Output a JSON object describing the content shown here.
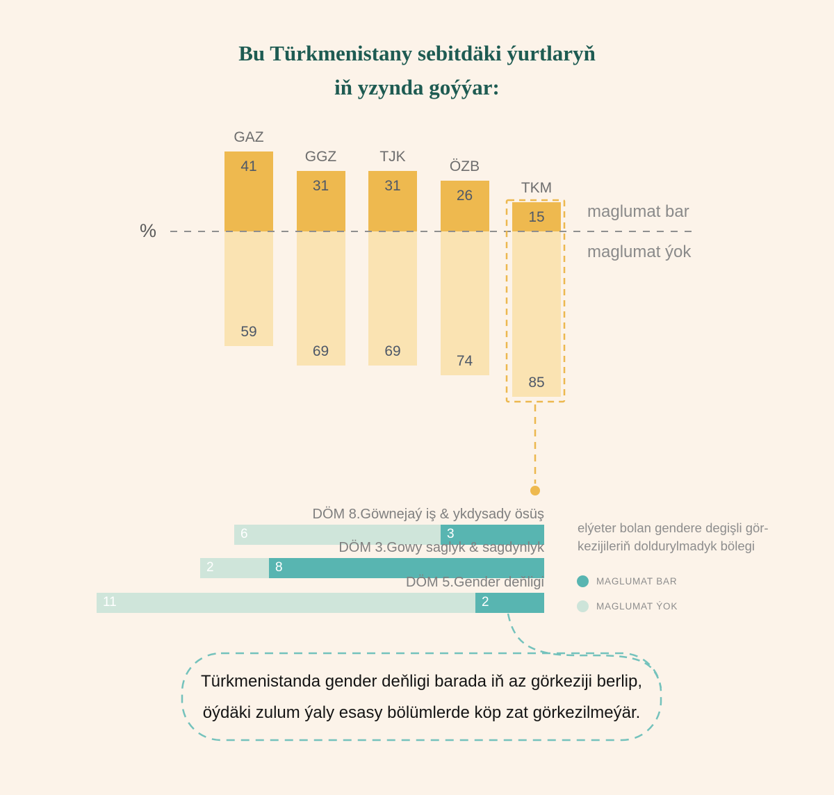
{
  "title": {
    "line1": "Bu Türkmenistany sebitdäki ýurtlaryň",
    "line2": "iň yzynda goýýar:"
  },
  "top_chart": {
    "axis_label": "%",
    "label_above_axis": "maglumat bar",
    "label_below_axis": "maglumat ýok",
    "highlight_category": "TKM"
  },
  "chart_data": [
    {
      "type": "bar",
      "orientation": "vertical-diverging",
      "categories": [
        "GAZ",
        "GGZ",
        "TJK",
        "ÖZB",
        "TKM"
      ],
      "series": [
        {
          "name": "maglumat bar",
          "direction": "up",
          "color": "#eeb94f",
          "values": [
            41,
            31,
            31,
            26,
            15
          ]
        },
        {
          "name": "maglumat ýok",
          "direction": "down",
          "color": "#fae3b2",
          "values": [
            59,
            69,
            69,
            74,
            85
          ]
        }
      ],
      "axis_label": "%",
      "value_range": [
        0,
        100
      ],
      "highlight_category": "TKM",
      "grid": "single dashed zero line"
    },
    {
      "type": "bar",
      "orientation": "horizontal-stacked-right-aligned",
      "categories": [
        "DÖM 8.Göwnejaý iş & ykdysady ösüş",
        "DÖM 3.Gowy saglyk & sagdynlyk",
        "DÖM 5.Gender deňligi"
      ],
      "series": [
        {
          "name": "MAGLUMAT ÝOK",
          "color": "#cfe5da",
          "values": [
            6,
            2,
            11
          ]
        },
        {
          "name": "MAGLUMAT BAR",
          "color": "#58b5b1",
          "values": [
            3,
            8,
            2
          ]
        }
      ],
      "legend_position": "right"
    }
  ],
  "legend": {
    "caption_line1": "elýeter bolan gendere degişli gör-",
    "caption_line2": "kezijileriň doldurylmadyk bölegi",
    "items": [
      {
        "label": "MAGLUMAT BAR",
        "color": "#58b5b1"
      },
      {
        "label": "MAGLUMAT ÝOK",
        "color": "#cde4d9"
      }
    ]
  },
  "callout": {
    "line1": "Türkmenistanda gender deňligi barada iň az görkeziji berlip,",
    "line2": "öýdäki zulum ýaly esasy bölümlerde köp zat görkezilmeýär."
  },
  "colors": {
    "background": "#fcf3e9",
    "yellow_dark": "#eeb94f",
    "yellow_light": "#fae3b2",
    "yellow_dash": "#ecb84f",
    "teal_dark": "#58b5b1",
    "teal_light": "#cfe5da",
    "title_text": "#1e5b52",
    "callout_border": "#74c2bc",
    "axis_gray": "#8f8f8f"
  }
}
